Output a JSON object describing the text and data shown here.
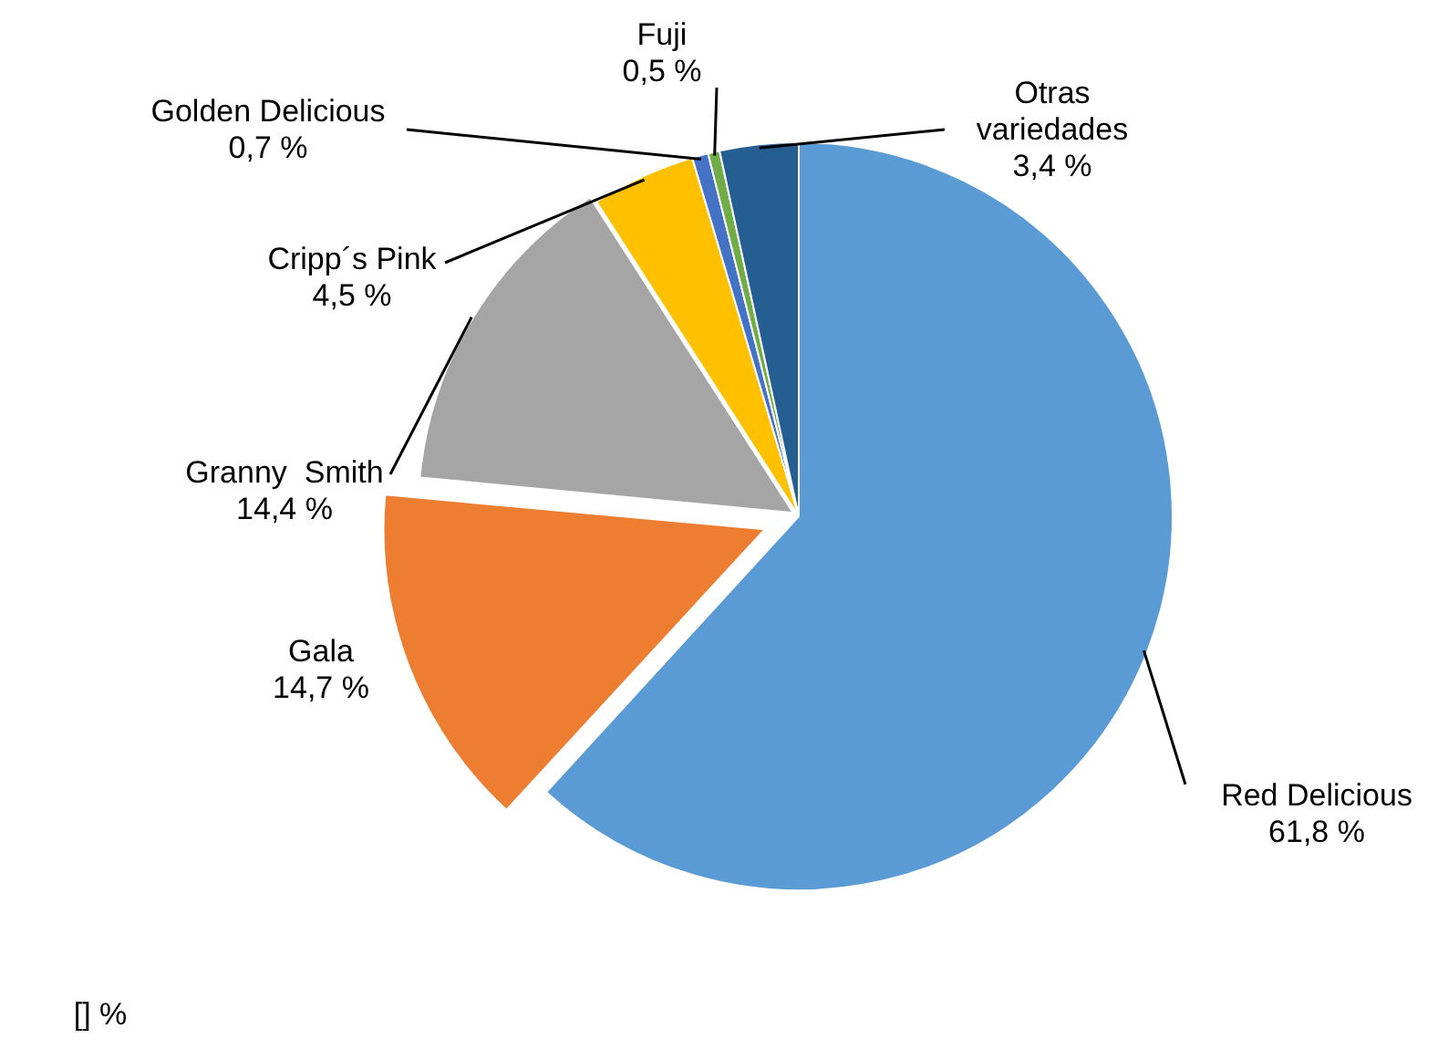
{
  "chart_data": {
    "type": "pie",
    "categories": [
      "Red Delicious",
      "Gala",
      "Granny  Smith",
      "Cripp´s Pink",
      "Golden Delicious",
      "Fuji",
      "Otras variedades"
    ],
    "values": [
      61.8,
      14.7,
      14.4,
      4.5,
      0.7,
      0.5,
      3.4
    ],
    "value_labels": [
      "61,8 %",
      "14,7 %",
      "14,4 %",
      "4,5 %",
      "0,7 %",
      "0,5 %",
      "3,4 %"
    ],
    "colors": [
      "#5b9bd5",
      "#ed7d31",
      "#a5a5a5",
      "#ffc000",
      "#4472c4",
      "#70ad47",
      "#255e91"
    ],
    "annotations": [
      "[] %"
    ],
    "legend": false
  }
}
